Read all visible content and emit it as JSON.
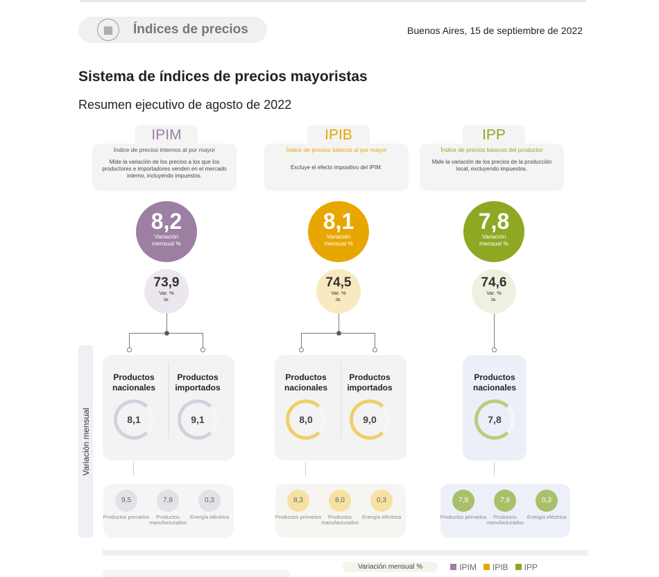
{
  "header": {
    "section": "Índices de precios",
    "date": "Buenos Aires, 15 de septiembre de 2022",
    "icon": "building-icon"
  },
  "title": "Sistema de índices de precios mayoristas",
  "subtitle": "Resumen ejecutivo de agosto de 2022",
  "side_label": "Variación mensual",
  "colors": {
    "IPIM": "#9d7fa3",
    "IPIB": "#e8a600",
    "IPP": "#8fa823"
  },
  "indices": [
    {
      "name": "IPIM",
      "full": "Índice de precios internos al por mayor",
      "description": "Mide la variación de los precios a los que los productores e importadores venden en el mercado interno, incluyendo impuestos.",
      "monthly": "8,2",
      "monthly_label": "Variación mensual %",
      "yearly": "73,9",
      "yearly_label": "Var. % ia.",
      "products": [
        {
          "label": "Productos nacionales",
          "value": "8,1",
          "progress": 0.81
        },
        {
          "label": "Productos importados",
          "value": "9,1",
          "progress": 0.91
        }
      ],
      "breakdown": [
        {
          "value": "9,5",
          "label": "Productos primarios"
        },
        {
          "value": "7,9",
          "label": "Productos manufacturados"
        },
        {
          "value": "0,3",
          "label": "Energía eléctrica"
        }
      ]
    },
    {
      "name": "IPIB",
      "full": "Índice de precios básicos al por mayor",
      "description": "Excluye el efecto impositivo del IPIM.",
      "monthly": "8,1",
      "monthly_label": "Variación mensual %",
      "yearly": "74,5",
      "yearly_label": "Var. % ia.",
      "products": [
        {
          "label": "Productos nacionales",
          "value": "8,0",
          "progress": 0.8
        },
        {
          "label": "Productos importados",
          "value": "9,0",
          "progress": 0.9
        }
      ],
      "breakdown": [
        {
          "value": "8,3",
          "label": "Productos primarios"
        },
        {
          "value": "8,0",
          "label": "Productos manufacturados"
        },
        {
          "value": "0,3",
          "label": "Energía eléctrica"
        }
      ]
    },
    {
      "name": "IPP",
      "full": "Índice de precios básicos del productor",
      "description": "Mide la variación de los precios de la producción local, excluyendo impuestos.",
      "monthly": "7,8",
      "monthly_label": "Variación mensual %",
      "yearly": "74,6",
      "yearly_label": "Var. % ia.",
      "products": [
        {
          "label": "Productos nacionales",
          "value": "7,8",
          "progress": 0.78
        }
      ],
      "breakdown": [
        {
          "value": "7,9",
          "label": "Productos primarios"
        },
        {
          "value": "7,9",
          "label": "Productos manufacturados"
        },
        {
          "value": "0,3",
          "label": "Energía eléctrica"
        }
      ]
    }
  ],
  "legend": {
    "label": "Variación mensual %",
    "items": [
      "IPIM",
      "IPIB",
      "IPP"
    ]
  }
}
